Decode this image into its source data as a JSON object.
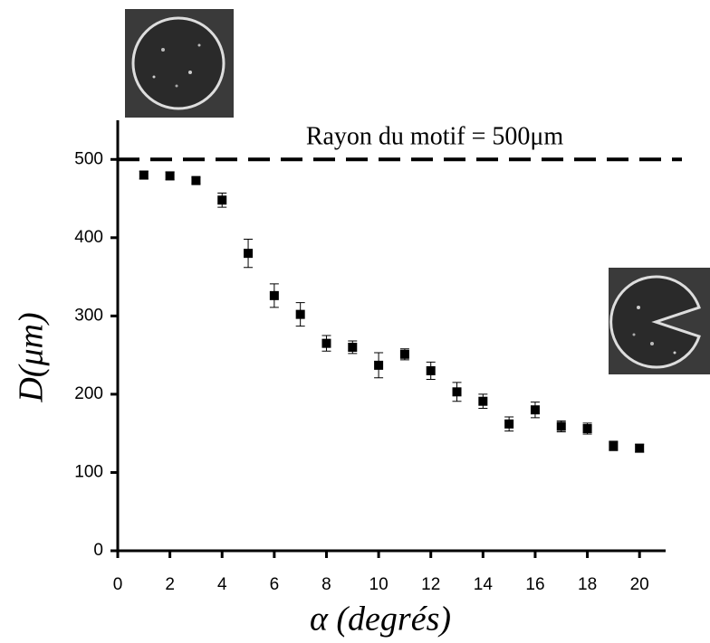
{
  "chart_data": {
    "type": "scatter",
    "xlabel": "α (degrés)",
    "ylabel": "D(μm)",
    "annotation": "Rayon du motif = 500μm",
    "hline": 500,
    "x": [
      1,
      2,
      3,
      4,
      5,
      6,
      7,
      8,
      9,
      10,
      11,
      12,
      13,
      14,
      15,
      16,
      17,
      18,
      19,
      20
    ],
    "series": [
      {
        "color": "#000000",
        "values": [
          480,
          479,
          473,
          448,
          380,
          326,
          302,
          265,
          260,
          237,
          251,
          230,
          203,
          191,
          162,
          180,
          159,
          156,
          134,
          131
        ],
        "errors": [
          5,
          5,
          4,
          9,
          18,
          15,
          15,
          10,
          8,
          16,
          7,
          11,
          12,
          9,
          9,
          10,
          7,
          7,
          6,
          5
        ]
      }
    ],
    "xlim": [
      0,
      21
    ],
    "xticks": [
      0,
      2,
      4,
      6,
      8,
      10,
      12,
      14,
      16,
      18,
      20
    ],
    "ylim": [
      0,
      550
    ],
    "yticks": [
      0,
      100,
      200,
      300,
      400,
      500
    ]
  }
}
